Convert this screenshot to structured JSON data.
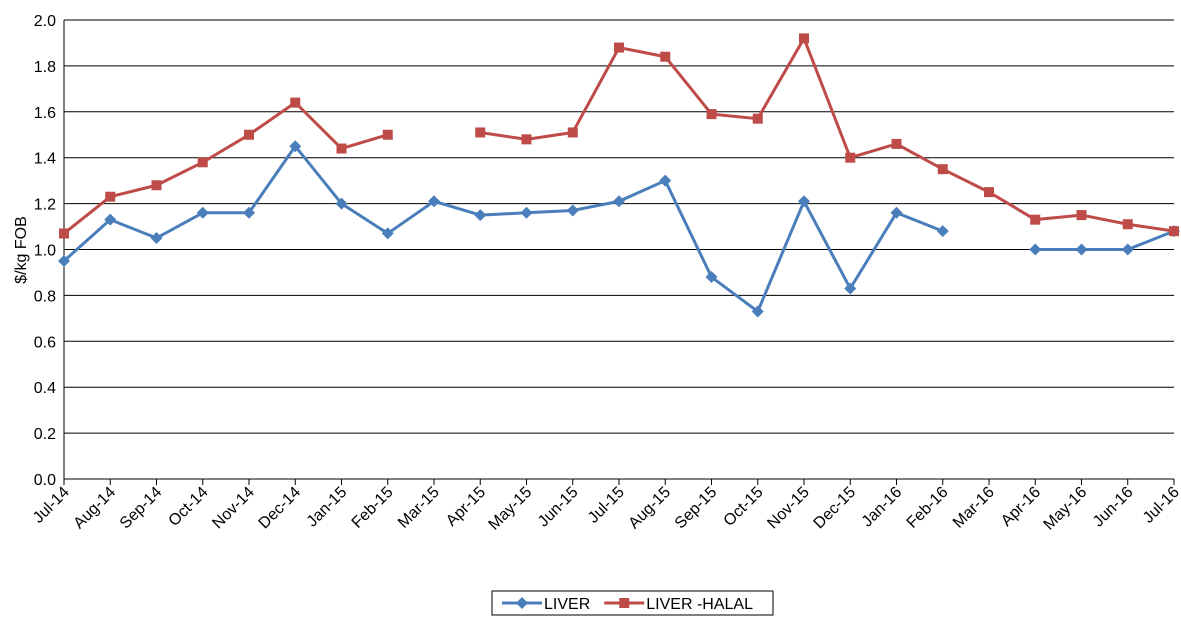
{
  "chart_data": {
    "type": "line",
    "y_label": "$/kg FOB",
    "categories": [
      "Jul-14",
      "Aug-14",
      "Sep-14",
      "Oct-14",
      "Nov-14",
      "Dec-14",
      "Jan-15",
      "Feb-15",
      "Mar-15",
      "Apr-15",
      "May-15",
      "Jun-15",
      "Jul-15",
      "Aug-15",
      "Sep-15",
      "Oct-15",
      "Nov-15",
      "Dec-15",
      "Jan-16",
      "Feb-16",
      "Mar-16",
      "Apr-16",
      "May-16",
      "Jun-16",
      "Jul-16"
    ],
    "series": [
      {
        "name": "LIVER",
        "color": "#4a7ebb",
        "marker": "diamond",
        "values": [
          0.95,
          1.13,
          1.05,
          1.16,
          1.16,
          1.45,
          1.2,
          1.07,
          1.21,
          1.15,
          1.16,
          1.17,
          1.21,
          1.3,
          0.88,
          0.73,
          1.21,
          0.83,
          1.16,
          1.08,
          null,
          1.0,
          1.0,
          1.0,
          1.08
        ]
      },
      {
        "name": "LIVER -HALAL",
        "color": "#be4b48",
        "marker": "square",
        "values": [
          1.07,
          1.23,
          1.28,
          1.38,
          1.5,
          1.64,
          1.44,
          1.5,
          null,
          1.51,
          1.48,
          1.51,
          1.88,
          1.84,
          1.59,
          1.57,
          1.92,
          1.4,
          1.46,
          1.35,
          1.25,
          1.13,
          1.15,
          1.11,
          1.08
        ]
      }
    ],
    "ylim": [
      0,
      2
    ],
    "yticks": [
      {
        "value": 0,
        "label": "0.0"
      },
      0.2,
      0.4,
      0.6,
      0.8,
      {
        "value": 1,
        "label": "1.0"
      },
      1.2,
      1.4,
      1.6,
      1.8,
      {
        "value": 2,
        "label": "2.0"
      }
    ],
    "grid": true,
    "legend": "bottom"
  }
}
